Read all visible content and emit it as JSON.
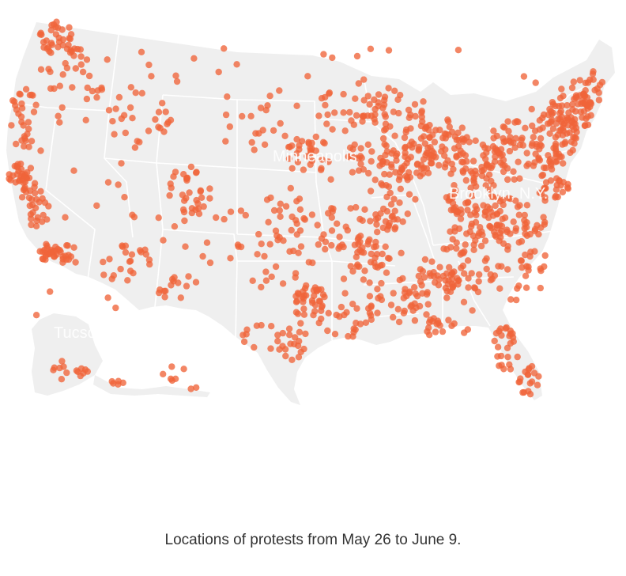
{
  "map": {
    "land_color": "#efefef",
    "border_color": "#ffffff",
    "marker_color": "#f0643a",
    "marker_opacity": 0.78,
    "city_labels": {
      "minneapolis": "Minneapolis",
      "brooklyn": "Brooklyn, N.Y.",
      "tucson": "Tucson"
    }
  },
  "caption": "Locations of protests from May 26 to June 9."
}
